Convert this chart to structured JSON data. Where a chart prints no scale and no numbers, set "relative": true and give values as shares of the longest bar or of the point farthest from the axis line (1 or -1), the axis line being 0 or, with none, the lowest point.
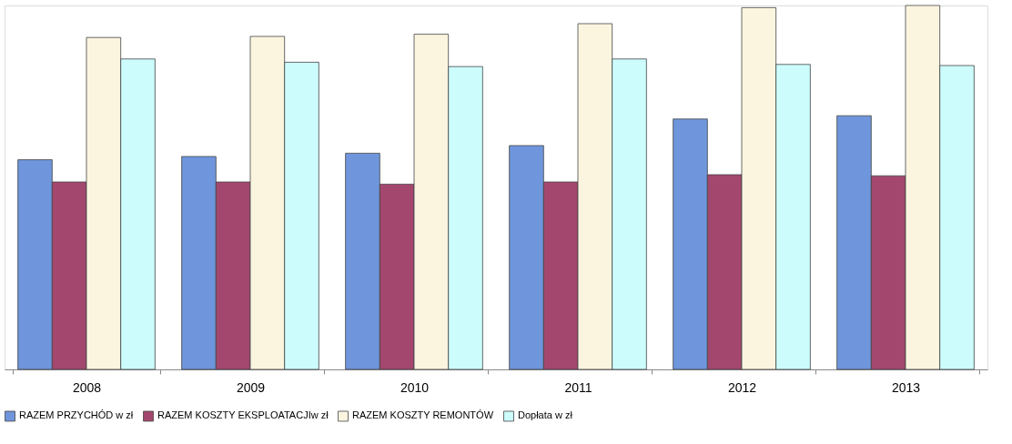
{
  "chart_data": {
    "type": "bar",
    "relative": true,
    "categories": [
      "2008",
      "2009",
      "2010",
      "2011",
      "2012",
      "2013"
    ],
    "series": [
      {
        "name": "RAZEM PRZYCHÓD w zł",
        "color": "#6f96dc",
        "values": [
          0.576,
          0.585,
          0.594,
          0.615,
          0.688,
          0.697
        ]
      },
      {
        "name": "RAZEM KOSZTY EKSPLOATACJIw zł",
        "color": "#a4476f",
        "values": [
          0.515,
          0.515,
          0.509,
          0.515,
          0.535,
          0.532
        ]
      },
      {
        "name": "RAZEM KOSZTY REMONTÓW",
        "color": "#fbf5e0",
        "values": [
          0.912,
          0.915,
          0.921,
          0.95,
          0.994,
          1
        ]
      },
      {
        "name": "Dopłata w zł",
        "color": "#ccfcfc",
        "values": [
          0.853,
          0.844,
          0.832,
          0.853,
          0.838,
          0.835
        ]
      }
    ],
    "grid": false,
    "legend": "bottom"
  }
}
